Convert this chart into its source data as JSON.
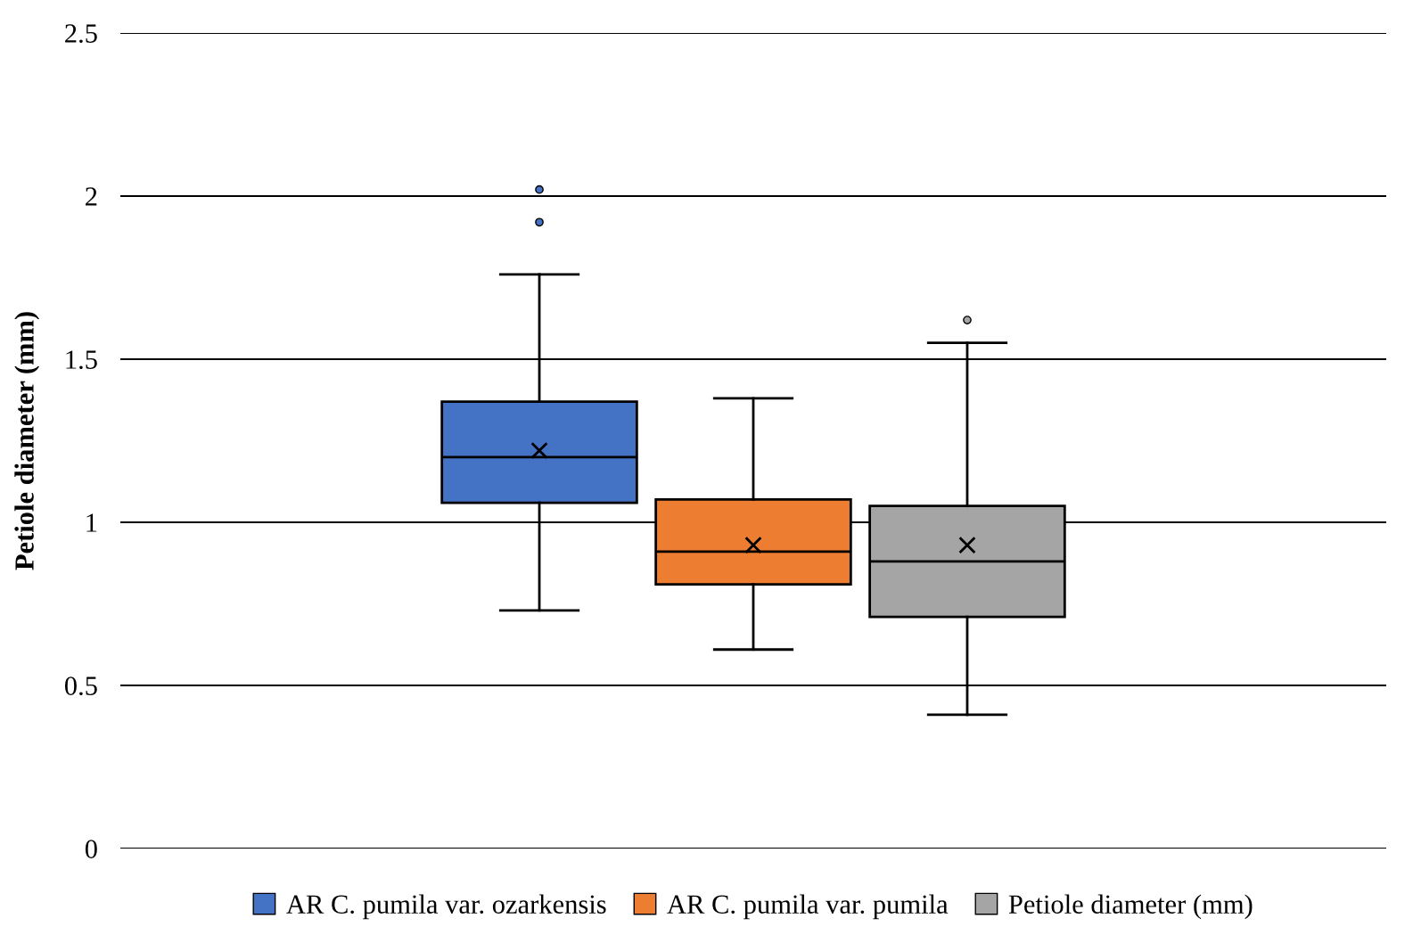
{
  "chart_data": {
    "type": "box",
    "ylabel": "Petiole diameter (mm)",
    "categories": [
      null
    ],
    "ylim": [
      0,
      2.5
    ],
    "yticks": [
      0,
      0.5,
      1,
      1.5,
      2,
      2.5
    ],
    "grid": "y",
    "legend": "bottom",
    "tick_labels": "y",
    "series": [
      {
        "name": "AR C. pumila var. ozarkensis",
        "color": "#4472c4",
        "boxes": [
          {
            "low": 0.73,
            "q1": 1.06,
            "median": 1.2,
            "q3": 1.37,
            "high": 1.76,
            "mean": 1.22,
            "outliers": [
              1.92,
              2.02
            ]
          }
        ]
      },
      {
        "name": "AR C. pumila var. pumila",
        "color": "#ed7d31",
        "boxes": [
          {
            "low": 0.61,
            "q1": 0.81,
            "median": 0.91,
            "q3": 1.07,
            "high": 1.38,
            "mean": 0.93
          }
        ]
      },
      {
        "name": "Petiole diameter (mm)",
        "color": "#a5a5a5",
        "boxes": [
          {
            "low": 0.41,
            "q1": 0.71,
            "median": 0.88,
            "q3": 1.05,
            "high": 1.55,
            "mean": 0.93,
            "outliers": [
              1.62
            ]
          }
        ]
      }
    ]
  }
}
